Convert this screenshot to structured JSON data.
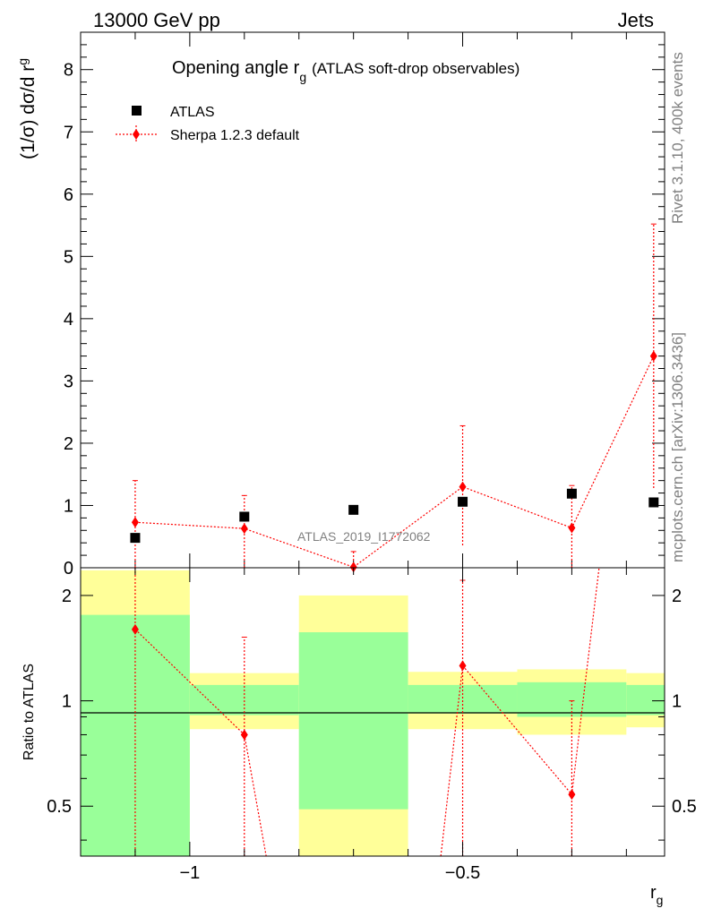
{
  "header": {
    "left": "13000 GeV pp",
    "right": "Jets"
  },
  "side_labels": {
    "rivet": "Rivet 3.1.10,  400k events",
    "mcplots": "mcplots.cern.ch [arXiv:1306.3436]"
  },
  "chart_data": [
    {
      "type": "scatter",
      "title_main": "Opening angle r",
      "title_sub": "g",
      "title_rest": "(ATLAS soft-drop observables)",
      "ylabel_main": "(1/σ) dσ/d r",
      "ylabel_sub": "g",
      "watermark": "ATLAS_2019_I1772062",
      "ylim": [
        0,
        8.6
      ],
      "y_ticks": [
        0,
        1,
        2,
        3,
        4,
        5,
        6,
        7,
        8
      ],
      "y_tick_labels": [
        "0",
        "1",
        "2",
        "3",
        "4",
        "5",
        "6",
        "7",
        "8"
      ],
      "xlim": [
        -1.2,
        -0.13
      ],
      "bin_edges": [
        -1.2,
        -1.0,
        -0.8,
        -0.6,
        -0.4,
        -0.2,
        -0.13
      ],
      "x": [
        -1.1,
        -0.9,
        -0.7,
        -0.5,
        -0.3,
        -0.15
      ],
      "legend": [
        "ATLAS",
        "Sherpa 1.2.3 default"
      ],
      "legend_position": "top-left",
      "series": [
        {
          "name": "ATLAS",
          "marker": "square",
          "color": "#000000",
          "values": [
            0.48,
            0.82,
            0.93,
            1.06,
            1.19,
            1.05
          ]
        },
        {
          "name": "Sherpa 1.2.3 default",
          "marker": "diamond",
          "color": "#ff0000",
          "values": [
            0.73,
            0.63,
            0.01,
            1.3,
            0.64,
            3.4
          ],
          "err_low": [
            0.73,
            0.63,
            0.01,
            0.94,
            0.64,
            2.12
          ],
          "err_high": [
            0.67,
            0.53,
            0.25,
            0.98,
            0.68,
            2.12
          ]
        }
      ]
    },
    {
      "type": "line",
      "ylabel": "Ratio to ATLAS",
      "xlabel_main": "r",
      "xlabel_sub": "g",
      "scale": "log",
      "ylim": [
        0.36,
        2.4
      ],
      "y_ticks": [
        0.5,
        1,
        2
      ],
      "y_tick_labels": [
        "0.5",
        "1",
        "2"
      ],
      "x_ticks": [
        -1.0,
        -0.5
      ],
      "x_tick_labels": [
        "−1",
        "−0.5"
      ],
      "xlim": [
        -1.2,
        -0.13
      ],
      "bins": [
        {
          "x_low": -1.2,
          "x_high": -1.0,
          "stat_low": 0.36,
          "stat_high": 1.76,
          "total_low": 0.36,
          "total_high": 2.36
        },
        {
          "x_low": -1.0,
          "x_high": -0.8,
          "stat_low": 0.91,
          "stat_high": 1.11,
          "total_low": 0.83,
          "total_high": 1.2
        },
        {
          "x_low": -0.8,
          "x_high": -0.6,
          "stat_low": 0.49,
          "stat_high": 1.57,
          "total_low": 0.36,
          "total_high": 2.0
        },
        {
          "x_low": -0.6,
          "x_high": -0.4,
          "stat_low": 0.92,
          "stat_high": 1.11,
          "total_low": 0.83,
          "total_high": 1.21
        },
        {
          "x_low": -0.4,
          "x_high": -0.2,
          "stat_low": 0.9,
          "stat_high": 1.13,
          "total_low": 0.8,
          "total_high": 1.23
        },
        {
          "x_low": -0.2,
          "x_high": -0.13,
          "stat_low": 0.91,
          "stat_high": 1.11,
          "total_low": 0.84,
          "total_high": 1.2
        }
      ],
      "series": [
        {
          "name": "Sherpa 1.2.3 default",
          "color": "#ff0000",
          "x": [
            -1.1,
            -0.9,
            -0.5,
            -0.3
          ],
          "values": [
            1.6,
            0.8,
            1.26,
            0.54
          ],
          "err_low": [
            1.6,
            0.8,
            0.9,
            0.54
          ],
          "err_high": [
            1.4,
            0.72,
            0.95,
            0.46
          ]
        }
      ],
      "offscale_segments": [
        {
          "from_x": -0.9,
          "from_y": 0.8,
          "to_x": -0.86,
          "to_y": 0.36
        },
        {
          "from_x": -0.54,
          "from_y": 0.36,
          "to_x": -0.5,
          "to_y": 1.26
        },
        {
          "from_x": -0.3,
          "from_y": 0.54,
          "to_x": -0.25,
          "to_y": 2.4
        }
      ],
      "colors": {
        "stat_band": "#99ff99",
        "total_band": "#ffff99",
        "reference_line": "#000000"
      }
    }
  ]
}
